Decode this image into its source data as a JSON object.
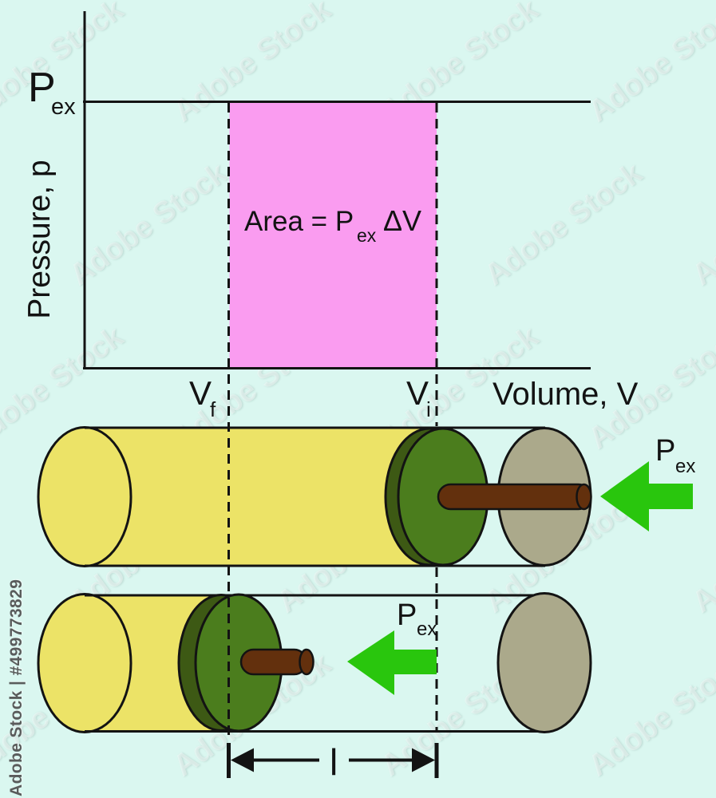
{
  "colors": {
    "background": "#daf7f0",
    "pink_area": "#fa9cf0",
    "gas_yellow": "#ece367",
    "piston_green": "#4b7d1d",
    "piston_rim_dark": "#3d5914",
    "rod_brown": "#63300d",
    "end_cap_gray": "#aba98b",
    "arrow_green": "#29c60d",
    "line_black": "#131313"
  },
  "graph": {
    "y_axis_label": "Pressure, p",
    "x_axis_label": "Volume, V",
    "external_pressure_label": {
      "base": "P",
      "sub": "ex"
    },
    "area_label": {
      "prefix": "Area = P",
      "sub": "ex",
      "suffix": "ΔV"
    },
    "v_final_label": {
      "base": "V",
      "sub": "f"
    },
    "v_initial_label": {
      "base": "V",
      "sub": "i"
    }
  },
  "pistons": {
    "initial_state_pressure_label": {
      "base": "P",
      "sub": "ex"
    },
    "final_state_pressure_label": {
      "base": "P",
      "sub": "ex"
    }
  },
  "measurement": {
    "length_label": "l"
  },
  "watermark": {
    "side_label": "Adobe Stock | #499773829",
    "tile_label": "Adobe Stock"
  }
}
